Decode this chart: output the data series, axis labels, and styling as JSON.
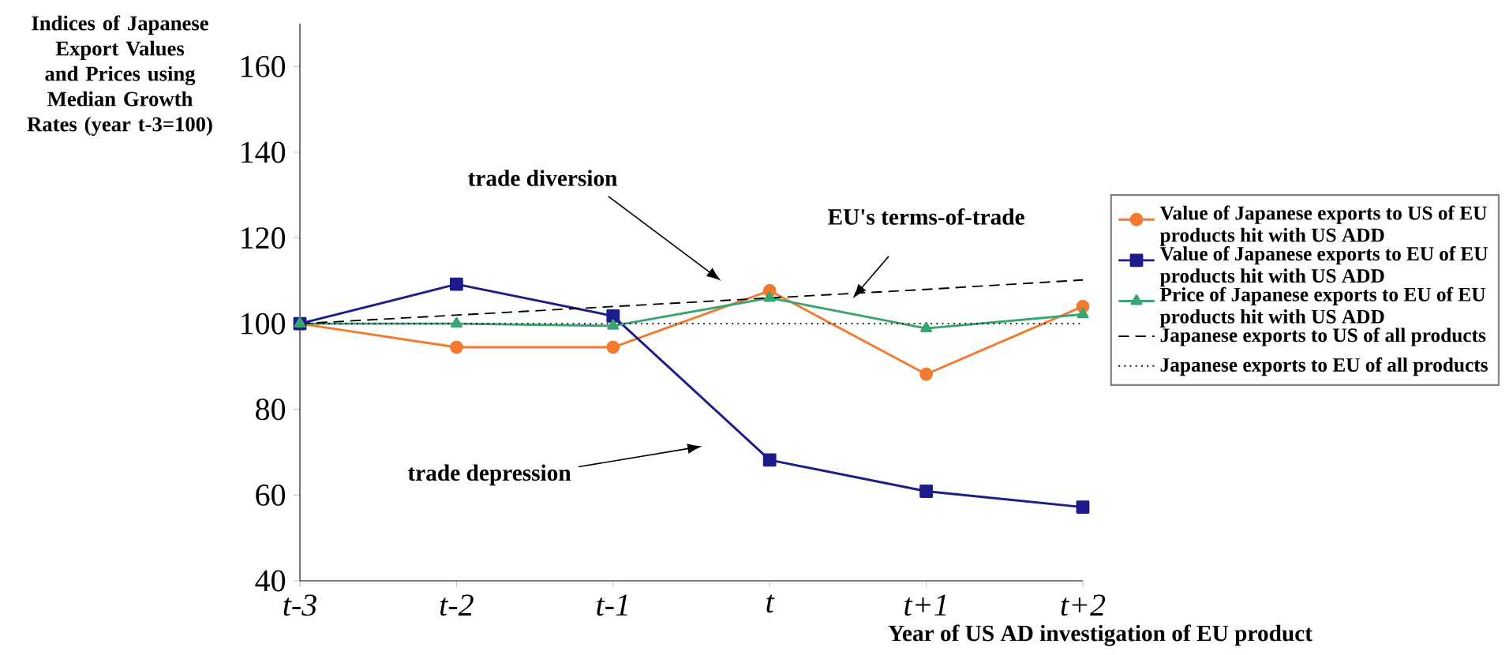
{
  "chart_data": {
    "type": "line",
    "ylabel": "Indices of Japanese Export Values and Prices using Median Growth Rates (year t-3=100)",
    "xlabel": "Year of US AD investigation of EU product",
    "categories": [
      "t-3",
      "t-2",
      "t-1",
      "t",
      "t+1",
      "t+2"
    ],
    "ylim": [
      40,
      170
    ],
    "yticks": [
      40,
      60,
      80,
      100,
      120,
      140,
      160
    ],
    "legend": "right",
    "grid": false,
    "annotations": [
      "trade diversion",
      "EU's terms-of-trade",
      "trade depression"
    ],
    "series": [
      {
        "name": "Value of Japanese exports to US of EU products hit with US ADD",
        "color": "#f47a30",
        "marker": "circle",
        "line_style": "solid",
        "values": [
          100,
          94.5,
          94.5,
          107.7,
          88.2,
          104
        ]
      },
      {
        "name": "Value of Japanese exports to EU of EU products hit with US ADD",
        "color": "#1c1c8c",
        "marker": "square",
        "line_style": "solid",
        "values": [
          100,
          109.2,
          101.8,
          68.2,
          60.9,
          57.2
        ]
      },
      {
        "name": "Price of Japanese exports to EU of EU products hit with US ADD",
        "color": "#3aa572",
        "marker": "triangle",
        "line_style": "solid",
        "values": [
          100,
          100,
          99.5,
          106,
          98.9,
          102.2
        ]
      },
      {
        "name": "Japanese exports to US of all products",
        "color": "#000000",
        "marker": "none",
        "line_style": "dashed",
        "values": [
          100,
          102,
          104,
          106,
          108,
          110.2
        ]
      },
      {
        "name": "Japanese exports to EU of all products",
        "color": "#000000",
        "marker": "none",
        "line_style": "dotted",
        "values": [
          100,
          100,
          100,
          100,
          100,
          100
        ]
      }
    ]
  }
}
